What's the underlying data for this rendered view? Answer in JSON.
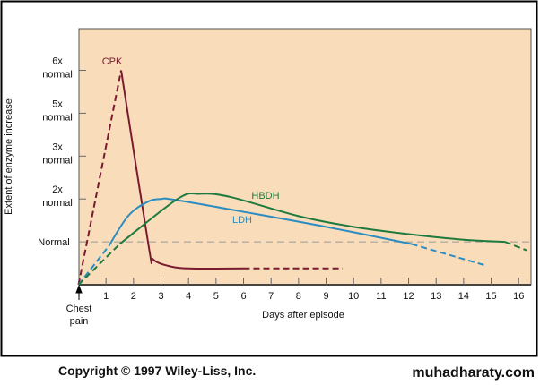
{
  "chart_data": {
    "type": "line",
    "ylabel": "Extent of enzyme increase",
    "xlabel": "Days after episode",
    "x_ticks": [
      "1",
      "2",
      "3",
      "4",
      "5",
      "6",
      "7",
      "8",
      "9",
      "10",
      "11",
      "12",
      "13",
      "14",
      "15",
      "16"
    ],
    "xlim": [
      0,
      16.5
    ],
    "y_levels": [
      {
        "label1": "Normal",
        "label2": "",
        "level": 1
      },
      {
        "label1": "2x",
        "label2": "normal",
        "level": 2
      },
      {
        "label1": "3x",
        "label2": "normal",
        "level": 3
      },
      {
        "label1": "5x",
        "label2": "normal",
        "level": 4
      },
      {
        "label1": "6x",
        "label2": "normal",
        "level": 5
      }
    ],
    "ylim": [
      0,
      6
    ],
    "origin_label": [
      "Chest",
      "pain"
    ],
    "normal_reference_level": 1,
    "series": [
      {
        "name": "CPK",
        "color": "#7a1a30",
        "dashed_start": [
          [
            0,
            0
          ],
          [
            1.55,
            5
          ]
        ],
        "solid": [
          [
            1.55,
            5
          ],
          [
            2.55,
            0.9
          ],
          [
            2.7,
            0.6
          ],
          [
            3.2,
            0.45
          ],
          [
            4,
            0.38
          ],
          [
            6,
            0.38
          ]
        ],
        "dashed_end": [
          [
            6,
            0.38
          ],
          [
            9.6,
            0.38
          ]
        ]
      },
      {
        "name": "LDH",
        "color": "#2a8cc0",
        "dashed_start": [
          [
            0,
            0
          ],
          [
            1.1,
            0.9
          ]
        ],
        "solid": [
          [
            1.1,
            0.9
          ],
          [
            1.8,
            1.6
          ],
          [
            2.5,
            1.93
          ],
          [
            3,
            2
          ],
          [
            3.5,
            1.98
          ],
          [
            6,
            1.7
          ],
          [
            9,
            1.35
          ],
          [
            12.1,
            0.95
          ]
        ],
        "dashed_end": [
          [
            12.1,
            0.95
          ],
          [
            14.8,
            0.45
          ]
        ]
      },
      {
        "name": "HBDH",
        "color": "#1e7a3c",
        "dashed_start": [
          [
            0,
            0
          ],
          [
            1.5,
            0.95
          ]
        ],
        "solid": [
          [
            1.5,
            0.95
          ],
          [
            3.6,
            2
          ],
          [
            4.4,
            2.12
          ],
          [
            5.5,
            2.05
          ],
          [
            8,
            1.6
          ],
          [
            10,
            1.35
          ],
          [
            12,
            1.18
          ],
          [
            14,
            1.05
          ],
          [
            15.5,
            1.0
          ]
        ],
        "dashed_end": [
          [
            15.5,
            1.0
          ],
          [
            16.3,
            0.8
          ]
        ]
      }
    ]
  },
  "footer": {
    "copyright": "Copyright © 1997 Wiley-Liss, Inc.",
    "site": "muhadharaty.com"
  }
}
